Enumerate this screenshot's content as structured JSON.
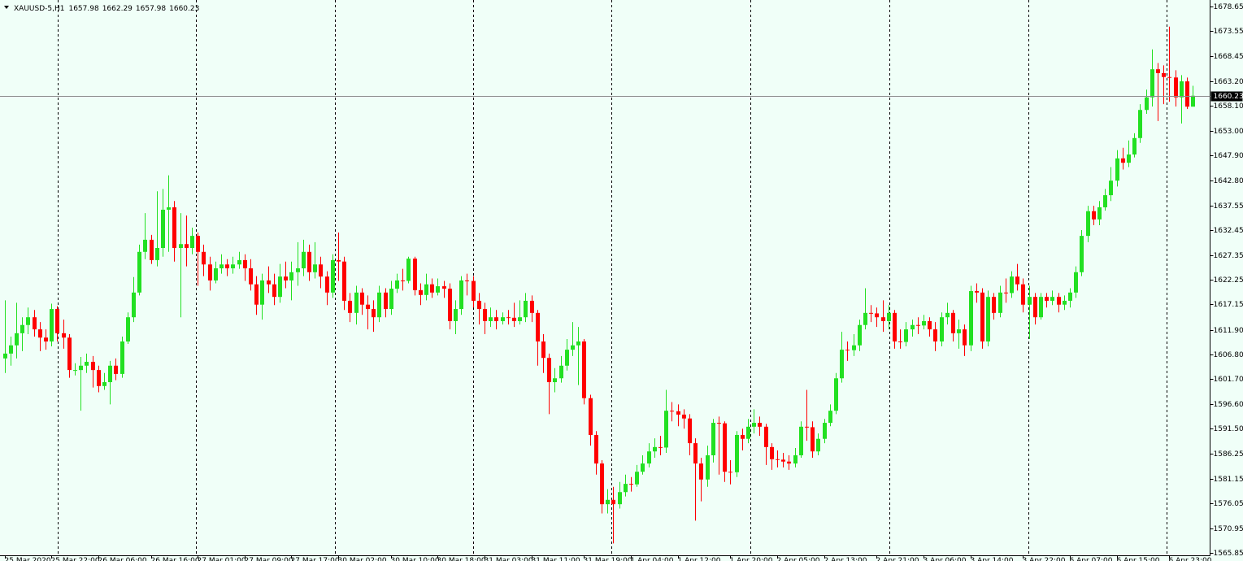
{
  "chart_data": {
    "type": "candlestick",
    "title": "XAUUSD-5,H1",
    "up_color": "#22e022",
    "down_color": "#ff0000",
    "ylim": [
      1565.35,
      1680.0
    ],
    "yticks": [
      1678.65,
      1673.55,
      1668.45,
      {
        "value": 1663.2,
        "label": "1663.20"
      },
      {
        "value": 1658.1,
        "label": "1658.10"
      },
      {
        "value": 1653.0,
        "label": "1653.00"
      },
      {
        "value": 1647.9,
        "label": "1647.90"
      },
      {
        "value": 1642.8,
        "label": "1642.80"
      },
      1637.55,
      1632.45,
      1627.35,
      1622.25,
      1617.15,
      {
        "value": 1611.9,
        "label": "1611.90"
      },
      {
        "value": 1606.8,
        "label": "1606.80"
      },
      {
        "value": 1601.7,
        "label": "1601.70"
      },
      {
        "value": 1596.6,
        "label": "1596.60"
      },
      {
        "value": 1591.5,
        "label": "1591.50"
      },
      1586.25,
      1581.15,
      1576.05,
      1570.95,
      1565.85
    ],
    "categories": [
      "25 Mar 2020",
      null,
      null,
      null,
      null,
      null,
      null,
      null,
      "25 Mar 22:00",
      null,
      null,
      null,
      null,
      null,
      null,
      null,
      "26 Mar 06:00",
      null,
      null,
      null,
      null,
      null,
      null,
      null,
      null,
      "26 Mar 16:00",
      null,
      null,
      null,
      null,
      null,
      null,
      null,
      "27 Mar 01:00",
      null,
      null,
      null,
      null,
      null,
      null,
      null,
      "27 Mar 09:00",
      null,
      null,
      null,
      null,
      null,
      null,
      null,
      "27 Mar 17:00",
      null,
      null,
      null,
      null,
      null,
      null,
      null,
      "30 Mar 02:00",
      null,
      null,
      null,
      null,
      null,
      null,
      null,
      null,
      "30 Mar 10:00",
      null,
      null,
      null,
      null,
      null,
      null,
      null,
      "30 Mar 18:00",
      null,
      null,
      null,
      null,
      null,
      null,
      null,
      "31 Mar 03:00",
      null,
      null,
      null,
      null,
      null,
      null,
      null,
      "31 Mar 11:00",
      null,
      null,
      null,
      null,
      null,
      null,
      null,
      null,
      "31 Mar 19:00",
      null,
      null,
      null,
      null,
      null,
      null,
      null,
      "1 Apr 04:00",
      null,
      null,
      null,
      null,
      null,
      null,
      null,
      "1 Apr 12:00",
      null,
      null,
      null,
      null,
      null,
      null,
      null,
      null,
      "1 Apr 20:00",
      null,
      null,
      null,
      null,
      null,
      null,
      null,
      "2 Apr 05:00",
      null,
      null,
      null,
      null,
      null,
      null,
      null,
      "2 Apr 13:00",
      null,
      null,
      null,
      null,
      null,
      null,
      null,
      null,
      "2 Apr 21:00",
      null,
      null,
      null,
      null,
      null,
      null,
      null,
      "3 Apr 06:00",
      null,
      null,
      null,
      null,
      null,
      null,
      null,
      "3 Apr 14:00",
      null,
      null,
      null,
      null,
      null,
      null,
      null,
      null,
      "3 Apr 22:00",
      null,
      null,
      null,
      null,
      null,
      null,
      null,
      "6 Apr 07:00",
      null,
      null,
      null,
      null,
      null,
      null,
      null,
      "6 Apr 15:00",
      null,
      null,
      null,
      null,
      null,
      null,
      null,
      null,
      "6 Apr 23:00",
      null,
      null,
      null,
      null
    ],
    "open": [
      1606.0,
      1607.0,
      1608.7,
      1611.2,
      1612.9,
      1614.5,
      1612.0,
      1610.3,
      1609.5,
      1616.2,
      1611.2,
      1610.3,
      1603.6,
      1603.6,
      1604.5,
      1605.3,
      1603.6,
      1600.3,
      1601.1,
      1604.5,
      1602.8,
      1609.5,
      1614.5,
      1619.6,
      1628.0,
      1630.5,
      1626.3,
      1628.8,
      1636.7,
      1637.2,
      1628.8,
      1629.6,
      1628.8,
      1631.3,
      1628.0,
      1625.4,
      1622.1,
      1624.6,
      1625.4,
      1624.6,
      1625.4,
      1626.3,
      1624.6,
      1621.3,
      1617.1,
      1622.1,
      1621.3,
      1618.7,
      1622.9,
      1622.1,
      1623.8,
      1624.6,
      1628.0,
      1623.8,
      1625.4,
      1622.9,
      1619.6,
      1626.3,
      1626.0,
      1617.9,
      1615.4,
      1619.6,
      1617.1,
      1616.2,
      1614.5,
      1619.6,
      1616.2,
      1620.4,
      1622.1,
      1622.0,
      1626.6,
      1620.1,
      1619.1,
      1621.3,
      1619.6,
      1620.9,
      1620.4,
      1613.7,
      1616.2,
      1622.1,
      1622.0,
      1617.9,
      1616.2,
      1613.7,
      1614.5,
      1613.7,
      1614.5,
      1614.4,
      1613.7,
      1614.5,
      1617.9,
      1615.4,
      1609.5,
      1606.1,
      1601.1,
      1601.9,
      1604.5,
      1607.8,
      1608.7,
      1609.5,
      1597.8,
      1590.2,
      1584.3,
      1575.9,
      1576.8,
      1575.9,
      1578.4,
      1580.1,
      1580.0,
      1582.6,
      1584.3,
      1586.8,
      1587.7,
      1587.6,
      1595.2,
      1595.1,
      1594.4,
      1593.6,
      1588.5,
      1584.3,
      1581.0,
      1586.0,
      1592.7,
      1592.6,
      1582.6,
      1582.5,
      1590.2,
      1589.4,
      1591.9,
      1592.7,
      1591.9,
      1587.7,
      1585.2,
      1585.1,
      1584.7,
      1584.3,
      1586.0,
      1591.9,
      1591.8,
      1586.8,
      1589.4,
      1592.7,
      1595.2,
      1601.9,
      1607.8,
      1607.7,
      1608.7,
      1612.9,
      1615.4,
      1615.3,
      1614.5,
      1613.7,
      1615.4,
      1609.5,
      1609.4,
      1612.0,
      1612.9,
      1612.8,
      1613.7,
      1612.0,
      1609.5,
      1614.5,
      1615.4,
      1611.2,
      1612.0,
      1608.7,
      1619.9,
      1619.6,
      1609.5,
      1618.7,
      1615.4,
      1619.6,
      1619.5,
      1622.9,
      1621.3,
      1617.1,
      1618.7,
      1614.5,
      1618.7,
      1617.9,
      1618.7,
      1617.1,
      1617.9,
      1619.6,
      1623.8,
      1631.3,
      1636.4,
      1634.7,
      1637.2,
      1639.7,
      1642.7,
      1647.3,
      1646.4,
      1648.1,
      1651.5,
      1657.3,
      1659.9,
      1665.7,
      1664.9,
      1664.1,
      1664.0,
      1659.9,
      1663.2,
      1657.98
    ],
    "high": [
      1618.0,
      1610.5,
      1617.5,
      1614.5,
      1616.5,
      1616.0,
      1613.5,
      1612.0,
      1617.3,
      1616.8,
      1614.0,
      1611.0,
      1605.0,
      1606.3,
      1607.0,
      1606.5,
      1604.5,
      1603.0,
      1605.5,
      1606.0,
      1610.5,
      1615.5,
      1622.8,
      1629.5,
      1636.0,
      1631.5,
      1640.5,
      1641.0,
      1643.8,
      1638.5,
      1636.0,
      1635.5,
      1633.0,
      1632.0,
      1629.5,
      1627.0,
      1626.0,
      1627.5,
      1626.5,
      1627.0,
      1628.0,
      1627.5,
      1626.5,
      1623.0,
      1623.5,
      1625.0,
      1623.5,
      1625.5,
      1626.0,
      1626.0,
      1630.0,
      1630.5,
      1629.5,
      1630.0,
      1627.0,
      1624.0,
      1627.5,
      1632.0,
      1627.0,
      1619.5,
      1621.0,
      1620.5,
      1619.0,
      1618.0,
      1621.0,
      1620.5,
      1622.0,
      1623.5,
      1624.5,
      1627.0,
      1627.0,
      1621.5,
      1623.5,
      1622.5,
      1622.5,
      1622.0,
      1621.5,
      1618.0,
      1623.0,
      1623.5,
      1623.0,
      1619.5,
      1617.5,
      1616.5,
      1616.0,
      1615.5,
      1616.0,
      1617.5,
      1618.0,
      1619.5,
      1619.0,
      1616.0,
      1611.0,
      1607.0,
      1604.0,
      1606.5,
      1610.0,
      1613.5,
      1612.5,
      1610.0,
      1598.5,
      1591.0,
      1585.0,
      1579.0,
      1579.5,
      1580.5,
      1582.0,
      1581.5,
      1584.0,
      1586.0,
      1588.5,
      1589.5,
      1590.0,
      1599.5,
      1597.0,
      1596.5,
      1595.5,
      1594.5,
      1589.5,
      1585.5,
      1588.0,
      1593.5,
      1594.0,
      1593.0,
      1585.0,
      1591.0,
      1591.5,
      1593.5,
      1595.5,
      1594.0,
      1592.5,
      1588.5,
      1587.0,
      1586.5,
      1586.0,
      1587.5,
      1593.0,
      1599.5,
      1593.0,
      1590.5,
      1593.5,
      1596.5,
      1603.0,
      1611.5,
      1609.5,
      1611.0,
      1614.0,
      1620.5,
      1617.0,
      1616.5,
      1618.0,
      1617.0,
      1616.0,
      1612.0,
      1613.5,
      1614.0,
      1614.5,
      1615.0,
      1614.5,
      1613.5,
      1615.5,
      1617.5,
      1616.0,
      1614.0,
      1613.0,
      1621.0,
      1621.5,
      1620.5,
      1620.0,
      1619.5,
      1621.0,
      1622.5,
      1624.0,
      1625.5,
      1622.5,
      1621.0,
      1619.5,
      1619.5,
      1619.5,
      1620.0,
      1619.5,
      1619.0,
      1620.5,
      1625.0,
      1632.5,
      1637.5,
      1637.5,
      1638.5,
      1641.0,
      1645.5,
      1649.0,
      1649.5,
      1651.0,
      1652.5,
      1658.5,
      1661.5,
      1669.8,
      1667.0,
      1666.5,
      1674.5,
      1665.5,
      1664.5,
      1664.0,
      1662.29
    ],
    "low": [
      1603.0,
      1604.5,
      1606.0,
      1607.5,
      1611.0,
      1610.5,
      1607.5,
      1607.8,
      1608.5,
      1609.5,
      1608.0,
      1602.0,
      1602.5,
      1595.2,
      1603.0,
      1600.0,
      1599.0,
      1599.5,
      1596.5,
      1601.5,
      1602.0,
      1609.0,
      1613.5,
      1619.0,
      1626.5,
      1625.5,
      1625.0,
      1627.0,
      1628.0,
      1626.0,
      1614.5,
      1625.0,
      1627.5,
      1621.0,
      1623.0,
      1620.0,
      1621.5,
      1623.5,
      1623.0,
      1623.5,
      1624.5,
      1622.0,
      1620.0,
      1615.0,
      1614.0,
      1619.5,
      1617.0,
      1617.5,
      1620.5,
      1618.0,
      1621.0,
      1623.0,
      1622.0,
      1622.5,
      1620.5,
      1617.0,
      1618.5,
      1622.0,
      1616.0,
      1613.5,
      1613.0,
      1615.0,
      1612.0,
      1611.5,
      1613.5,
      1614.5,
      1615.0,
      1619.5,
      1620.0,
      1621.5,
      1619.0,
      1617.0,
      1618.0,
      1618.5,
      1619.0,
      1618.5,
      1612.0,
      1611.0,
      1615.0,
      1619.0,
      1616.5,
      1613.0,
      1611.0,
      1612.5,
      1612.0,
      1613.0,
      1613.0,
      1612.5,
      1613.0,
      1613.5,
      1613.5,
      1604.5,
      1603.0,
      1594.5,
      1599.0,
      1601.0,
      1603.5,
      1606.5,
      1600.5,
      1596.5,
      1588.0,
      1582.0,
      1574.0,
      1574.0,
      1567.8,
      1575.0,
      1577.5,
      1578.5,
      1579.5,
      1582.0,
      1583.5,
      1585.5,
      1586.0,
      1586.5,
      1593.0,
      1592.0,
      1591.5,
      1586.0,
      1572.5,
      1576.5,
      1579.5,
      1584.5,
      1582.0,
      1580.5,
      1580.0,
      1581.5,
      1587.0,
      1588.5,
      1590.5,
      1590.0,
      1584.0,
      1583.0,
      1583.5,
      1583.5,
      1583.0,
      1583.5,
      1585.5,
      1589.0,
      1585.5,
      1586.0,
      1588.5,
      1592.0,
      1594.5,
      1601.0,
      1605.5,
      1606.5,
      1607.5,
      1612.0,
      1613.5,
      1612.5,
      1611.5,
      1612.0,
      1608.0,
      1608.0,
      1608.5,
      1610.5,
      1611.0,
      1612.0,
      1610.5,
      1607.5,
      1608.5,
      1613.0,
      1609.5,
      1608.0,
      1606.5,
      1607.5,
      1617.5,
      1608.0,
      1608.5,
      1614.0,
      1614.5,
      1617.5,
      1618.5,
      1620.0,
      1615.5,
      1610.0,
      1613.0,
      1614.0,
      1616.5,
      1617.0,
      1615.5,
      1616.0,
      1616.5,
      1618.5,
      1623.0,
      1630.0,
      1633.5,
      1633.5,
      1636.5,
      1638.5,
      1641.5,
      1645.0,
      1645.5,
      1647.5,
      1650.5,
      1656.5,
      1658.0,
      1655.0,
      1658.5,
      1659.0,
      1658.0,
      1654.5,
      1657.5,
      1657.98
    ],
    "close": [
      1607.0,
      1608.7,
      1611.2,
      1612.9,
      1614.5,
      1612.0,
      1610.3,
      1609.5,
      1616.2,
      1611.2,
      1610.3,
      1603.6,
      1603.6,
      1604.5,
      1605.3,
      1603.6,
      1600.3,
      1601.1,
      1604.5,
      1602.8,
      1609.5,
      1614.5,
      1619.6,
      1628.0,
      1630.5,
      1626.3,
      1628.8,
      1636.7,
      1637.2,
      1628.8,
      1629.6,
      1628.8,
      1631.3,
      1628.0,
      1625.4,
      1622.1,
      1624.6,
      1625.4,
      1624.6,
      1625.4,
      1626.3,
      1624.6,
      1621.3,
      1617.1,
      1622.1,
      1621.3,
      1618.7,
      1622.9,
      1622.1,
      1623.8,
      1624.6,
      1628.0,
      1623.8,
      1625.4,
      1622.9,
      1619.6,
      1626.3,
      1626.0,
      1617.9,
      1615.4,
      1619.6,
      1617.1,
      1616.2,
      1614.5,
      1619.6,
      1616.2,
      1620.4,
      1622.1,
      1622.0,
      1626.6,
      1620.1,
      1619.1,
      1621.3,
      1619.6,
      1620.9,
      1620.4,
      1613.7,
      1616.2,
      1622.1,
      1622.0,
      1617.9,
      1616.2,
      1613.7,
      1614.5,
      1613.7,
      1614.5,
      1614.4,
      1613.7,
      1614.5,
      1617.9,
      1615.4,
      1609.5,
      1606.1,
      1601.1,
      1601.9,
      1604.5,
      1607.8,
      1608.7,
      1609.5,
      1597.8,
      1590.2,
      1584.3,
      1575.9,
      1576.8,
      1575.9,
      1578.4,
      1580.1,
      1580.0,
      1582.6,
      1584.3,
      1586.8,
      1587.7,
      1587.6,
      1595.2,
      1595.1,
      1594.4,
      1593.6,
      1588.5,
      1584.3,
      1581.0,
      1586.0,
      1592.7,
      1592.6,
      1582.6,
      1582.5,
      1590.2,
      1589.4,
      1591.9,
      1592.7,
      1591.9,
      1587.7,
      1585.2,
      1585.1,
      1584.7,
      1584.3,
      1586.0,
      1591.9,
      1591.8,
      1586.8,
      1589.4,
      1592.7,
      1595.2,
      1601.9,
      1607.8,
      1607.7,
      1608.7,
      1612.9,
      1615.4,
      1615.3,
      1614.5,
      1613.7,
      1615.4,
      1609.5,
      1609.4,
      1612.0,
      1612.9,
      1612.8,
      1613.7,
      1612.0,
      1609.5,
      1614.5,
      1615.4,
      1611.2,
      1612.0,
      1608.7,
      1619.9,
      1619.6,
      1609.5,
      1618.7,
      1615.4,
      1619.6,
      1619.5,
      1622.9,
      1621.3,
      1617.1,
      1618.7,
      1614.5,
      1618.7,
      1617.9,
      1618.7,
      1617.1,
      1617.9,
      1619.6,
      1623.8,
      1631.3,
      1636.4,
      1634.7,
      1637.2,
      1639.7,
      1642.7,
      1647.3,
      1646.4,
      1648.1,
      1651.5,
      1657.3,
      1659.9,
      1665.7,
      1664.9,
      1664.1,
      1664.0,
      1659.9,
      1663.2,
      1657.98,
      1660.23
    ]
  }
}
